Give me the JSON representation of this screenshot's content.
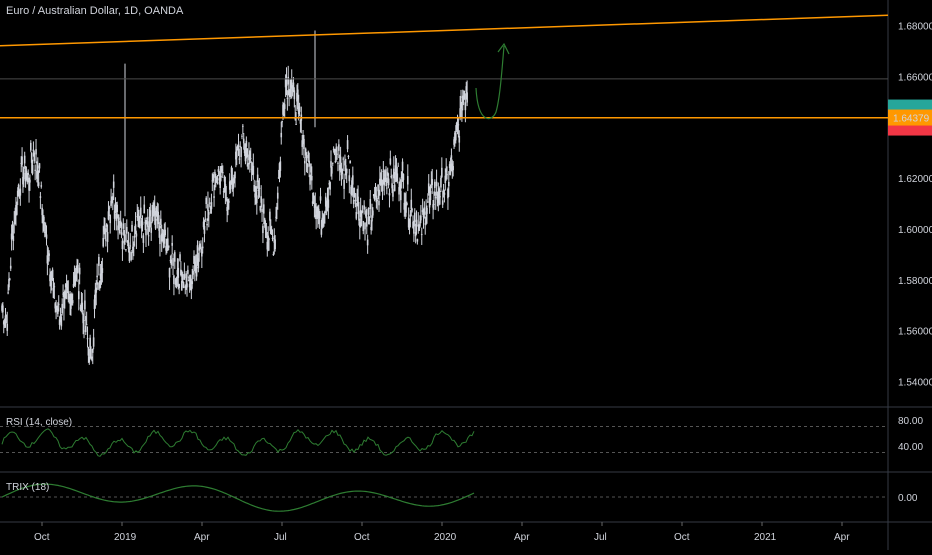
{
  "title": "Euro / Australian Dollar, 1D, OANDA",
  "price_axis": {
    "ticks": [
      "1.68000",
      "1.66000",
      "1.64000",
      "1.62000",
      "1.60000",
      "1.58000",
      "1.56000",
      "1.54000"
    ],
    "last_price_label": "1.64379",
    "last_price_color": "#ff9800",
    "green_tag_color": "#26a69a",
    "red_tag_color": "#f23645"
  },
  "rsi": {
    "label": "RSI (14, close)",
    "ticks": [
      "80.00",
      "40.00"
    ],
    "line_color": "#2e7d32"
  },
  "trix": {
    "label": "TRIX (18)",
    "ticks": [
      "0.00"
    ],
    "line_color": "#2e7d32"
  },
  "time_axis": {
    "ticks": [
      "Oct",
      "2019",
      "Apr",
      "Jul",
      "Oct",
      "2020",
      "Apr",
      "Jul",
      "Oct",
      "2021",
      "Apr"
    ]
  },
  "colors": {
    "background": "#000000",
    "candle": "#d1d4dc",
    "trendline": "#ff9800",
    "projection_arrow": "#2e7d32",
    "level_line": "#4a4a4a",
    "divider": "#363a45"
  },
  "chart_data": {
    "type": "candlestick",
    "series": [
      {
        "name": "",
        "values": [
          [
            0.0,
            1.57
          ],
          [
            0.01,
            1.565
          ],
          [
            0.02,
            1.598
          ],
          [
            0.03,
            1.612
          ],
          [
            0.04,
            1.625
          ],
          [
            0.05,
            1.62
          ],
          [
            0.06,
            1.63
          ],
          [
            0.07,
            1.622
          ],
          [
            0.08,
            1.602
          ],
          [
            0.09,
            1.59
          ],
          [
            0.1,
            1.572
          ],
          [
            0.11,
            1.565
          ],
          [
            0.12,
            1.575
          ],
          [
            0.13,
            1.568
          ],
          [
            0.14,
            1.585
          ],
          [
            0.15,
            1.575
          ],
          [
            0.16,
            1.56
          ],
          [
            0.17,
            1.548
          ],
          [
            0.18,
            1.575
          ],
          [
            0.19,
            1.588
          ],
          [
            0.2,
            1.602
          ],
          [
            0.21,
            1.615
          ],
          [
            0.22,
            1.608
          ],
          [
            0.23,
            1.598
          ],
          [
            0.24,
            1.592
          ],
          [
            0.25,
            1.598
          ],
          [
            0.26,
            1.605
          ],
          [
            0.27,
            1.602
          ],
          [
            0.28,
            1.598
          ],
          [
            0.29,
            1.605
          ],
          [
            0.3,
            1.6
          ],
          [
            0.31,
            1.595
          ],
          [
            0.32,
            1.59
          ],
          [
            0.33,
            1.585
          ],
          [
            0.34,
            1.582
          ],
          [
            0.35,
            1.58
          ],
          [
            0.36,
            1.578
          ],
          [
            0.37,
            1.588
          ],
          [
            0.38,
            1.595
          ],
          [
            0.39,
            1.605
          ],
          [
            0.4,
            1.615
          ],
          [
            0.41,
            1.622
          ],
          [
            0.42,
            1.618
          ],
          [
            0.43,
            1.612
          ],
          [
            0.44,
            1.62
          ],
          [
            0.45,
            1.628
          ],
          [
            0.46,
            1.635
          ],
          [
            0.47,
            1.63
          ],
          [
            0.48,
            1.62
          ],
          [
            0.49,
            1.612
          ],
          [
            0.5,
            1.605
          ],
          [
            0.51,
            1.598
          ],
          [
            0.52,
            1.595
          ],
          [
            0.53,
            1.625
          ],
          [
            0.54,
            1.655
          ],
          [
            0.55,
            1.66
          ],
          [
            0.56,
            1.648
          ],
          [
            0.57,
            1.642
          ],
          [
            0.58,
            1.63
          ],
          [
            0.59,
            1.62
          ],
          [
            0.6,
            1.61
          ],
          [
            0.61,
            1.605
          ],
          [
            0.62,
            1.612
          ],
          [
            0.63,
            1.625
          ],
          [
            0.64,
            1.63
          ],
          [
            0.65,
            1.622
          ],
          [
            0.66,
            1.628
          ],
          [
            0.67,
            1.618
          ],
          [
            0.68,
            1.61
          ],
          [
            0.69,
            1.605
          ],
          [
            0.7,
            1.6
          ],
          [
            0.71,
            1.608
          ],
          [
            0.72,
            1.615
          ],
          [
            0.73,
            1.622
          ],
          [
            0.74,
            1.62
          ],
          [
            0.75,
            1.618
          ],
          [
            0.76,
            1.622
          ],
          [
            0.77,
            1.615
          ],
          [
            0.78,
            1.608
          ],
          [
            0.79,
            1.602
          ],
          [
            0.8,
            1.598
          ],
          [
            0.81,
            1.61
          ],
          [
            0.82,
            1.612
          ],
          [
            0.83,
            1.615
          ],
          [
            0.84,
            1.615
          ],
          [
            0.85,
            1.618
          ],
          [
            0.86,
            1.625
          ],
          [
            0.87,
            1.638
          ],
          [
            0.88,
            1.65
          ],
          [
            0.89,
            1.658
          ]
        ]
      }
    ],
    "ylim": [
      1.53,
      1.69
    ],
    "price_range_labels": [
      "1.68000",
      "1.54000"
    ],
    "last_price": 1.64379,
    "trendline": {
      "start": 1.672,
      "end": 1.684
    },
    "horizontal_levels": [
      1.6437,
      1.659
    ],
    "rsi_levels": [
      70,
      30
    ],
    "xlabel": "",
    "ylabel": ""
  }
}
